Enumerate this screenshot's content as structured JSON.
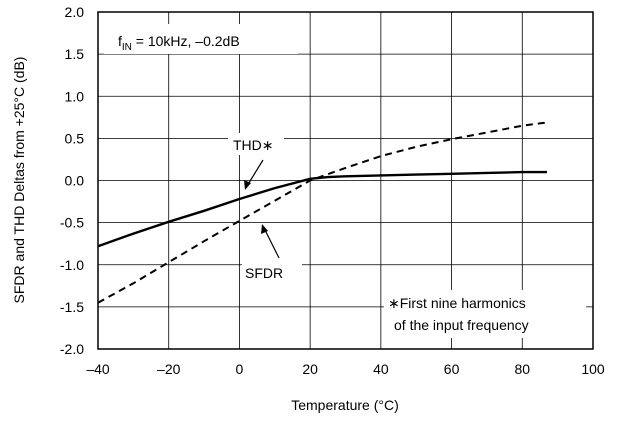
{
  "chart_data": {
    "type": "line",
    "title": "",
    "xlabel": "Temperature (°C)",
    "ylabel": "SFDR and THD Deltas from +25°C (dB)",
    "xlim": [
      -40,
      100
    ],
    "ylim": [
      -2.0,
      2.0
    ],
    "xticks": [
      -40,
      -20,
      0,
      20,
      40,
      60,
      80,
      100
    ],
    "xtick_labels": [
      "–40",
      "–20",
      "0",
      "20",
      "40",
      "60",
      "80",
      "100"
    ],
    "yticks": [
      2.0,
      1.5,
      1.0,
      0.5,
      0.0,
      -0.5,
      -1.0,
      -1.5,
      -2.0
    ],
    "ytick_labels": [
      "2.0",
      "1.5",
      "1.0",
      "0.5",
      "0.0",
      "-0.5",
      "-1.0",
      "-1.5",
      "-2.0"
    ],
    "grid": true,
    "legend": "none",
    "series": [
      {
        "name": "THD*",
        "style": "solid",
        "x": [
          -40,
          -30,
          -20,
          -10,
          0,
          10,
          20,
          25,
          30,
          40,
          50,
          60,
          70,
          80,
          87
        ],
        "y": [
          -0.78,
          -0.63,
          -0.49,
          -0.36,
          -0.22,
          -0.09,
          0.02,
          0.04,
          0.05,
          0.06,
          0.07,
          0.08,
          0.09,
          0.1,
          0.1
        ]
      },
      {
        "name": "SFDR",
        "style": "dashed",
        "x": [
          -40,
          -30,
          -20,
          -10,
          0,
          10,
          20,
          30,
          40,
          50,
          60,
          70,
          80,
          87
        ],
        "y": [
          -1.45,
          -1.22,
          -0.97,
          -0.72,
          -0.48,
          -0.24,
          0.0,
          0.15,
          0.29,
          0.4,
          0.49,
          0.57,
          0.65,
          0.69
        ]
      }
    ],
    "annotations": {
      "condition_prefix": "f",
      "condition_subscript": "IN",
      "condition_suffix": " = 10kHz, –0.2dB",
      "thd_label": "THD∗",
      "sfdr_label": "SFDR",
      "footnote_line1": "∗First nine harmonics",
      "footnote_line2": "of the input frequency"
    }
  }
}
